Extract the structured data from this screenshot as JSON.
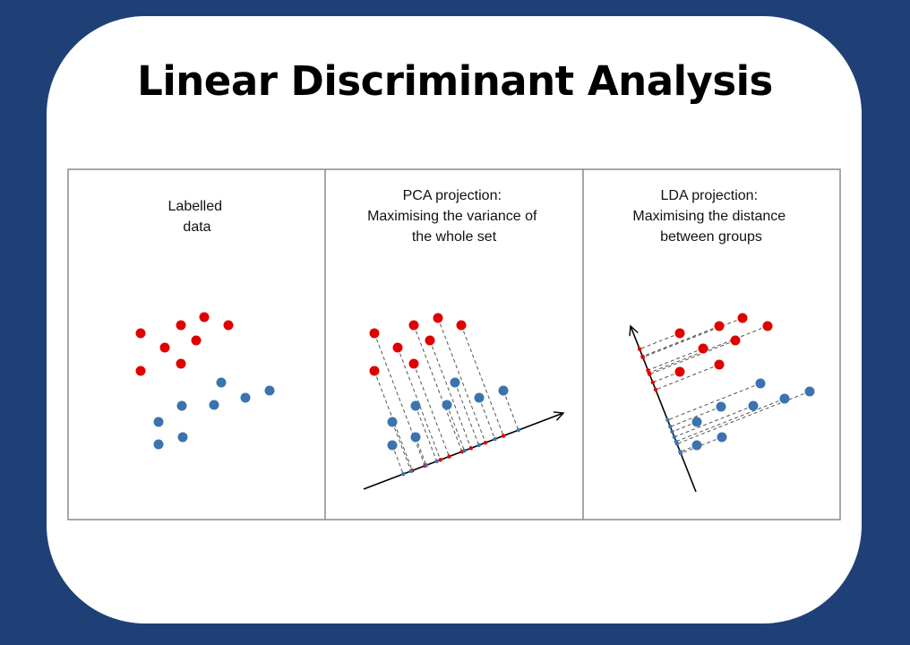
{
  "title": "Linear Discriminant Analysis",
  "colors": {
    "background": "#1f4076",
    "card": "#ffffff",
    "red_class": "#e00000",
    "blue_class": "#3b73b0",
    "panel_border": "#8a8a8a"
  },
  "panels": [
    {
      "id": "labelled",
      "title_lines": [
        "Labelled",
        "data"
      ]
    },
    {
      "id": "pca",
      "title_lines": [
        "PCA projection:",
        "Maximising the variance of",
        "the whole set"
      ]
    },
    {
      "id": "lda",
      "title_lines": [
        "LDA projection:",
        "Maximising the distance",
        "between groups"
      ]
    }
  ]
}
